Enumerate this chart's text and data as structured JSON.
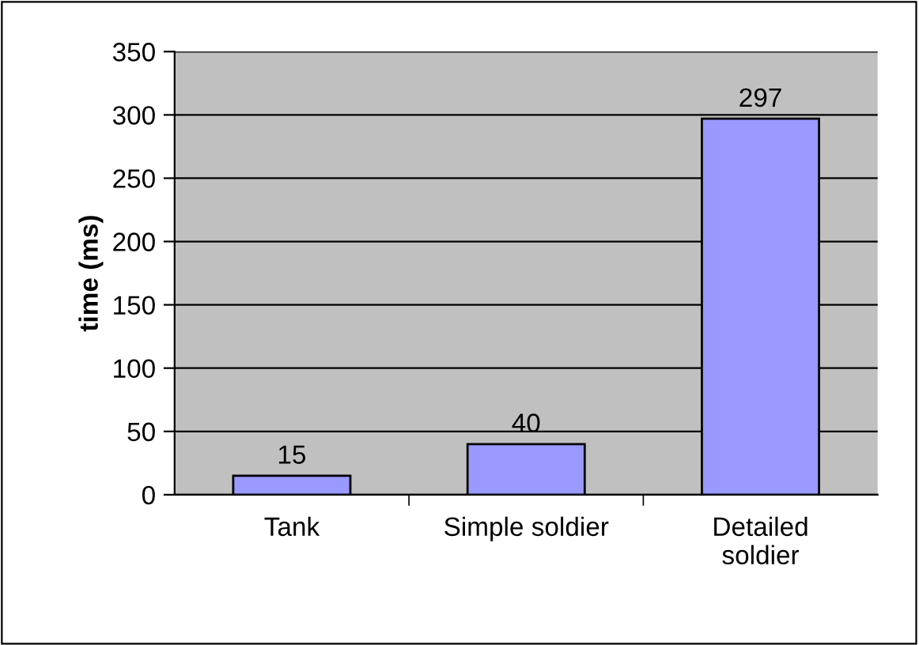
{
  "chart_data": {
    "type": "bar",
    "ylabel": "time (ms)",
    "categories": [
      "Tank",
      "Simple soldier",
      "Detailed\nsoldier"
    ],
    "values": [
      15,
      40,
      297
    ],
    "color": "#9999ff",
    "ylim": [
      0,
      350
    ],
    "yticks": [
      0,
      50,
      100,
      150,
      200,
      250,
      300,
      350
    ],
    "grid": "y",
    "data_labels": true,
    "legend": false
  }
}
